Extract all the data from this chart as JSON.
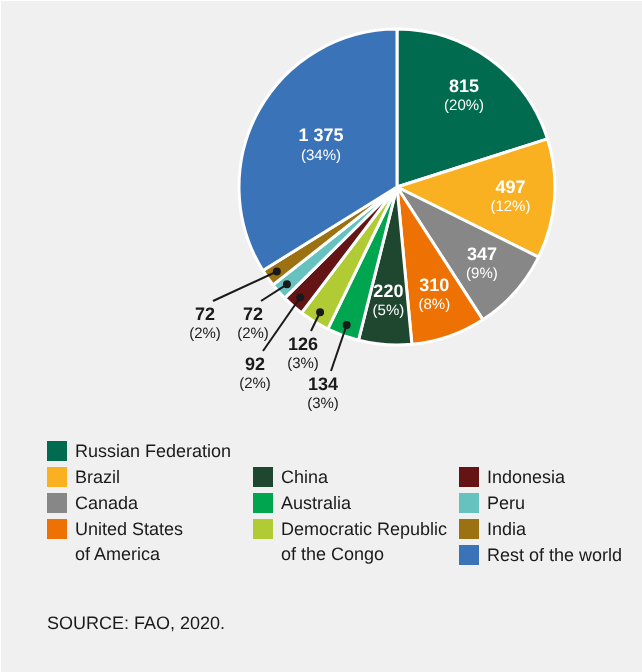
{
  "chart_data": {
    "type": "pie",
    "categories": [
      "Russian Federation",
      "Brazil",
      "Canada",
      "United States of America",
      "China",
      "Australia",
      "Democratic Republic of the Congo",
      "Indonesia",
      "Peru",
      "India",
      "Rest of the world"
    ],
    "values": [
      815,
      497,
      347,
      310,
      220,
      134,
      126,
      92,
      72,
      72,
      1375
    ],
    "colors": [
      "#006b4f",
      "#f9b121",
      "#878787",
      "#ee7203",
      "#1f4730",
      "#00a54f",
      "#b1cb35",
      "#641414",
      "#66c2bf",
      "#9c7112",
      "#3a73b7"
    ],
    "value_labels": [
      "815\n(20%)",
      "497\n(12%)",
      "347\n(9%)",
      "310\n(8%)",
      "220\n(5%)",
      "134\n(3%)",
      "126\n(3%)",
      "92\n(2%)",
      "72\n(2%)",
      "72\n(2%)",
      "1 375\n(34%)"
    ],
    "legend": "bottom",
    "annotations": [
      "SOURCE: FAO, 2020."
    ]
  }
}
